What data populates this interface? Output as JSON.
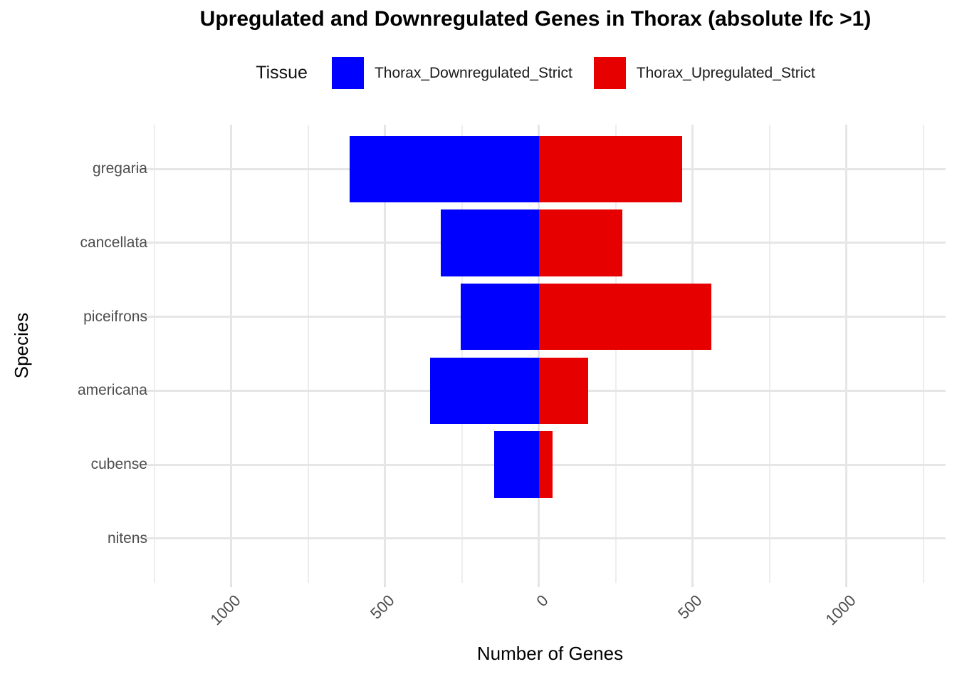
{
  "chart_data": {
    "type": "bar",
    "orientation": "horizontal-diverging",
    "title": "Upregulated and Downregulated Genes in Thorax (absolute lfc >1)",
    "xlabel": "Number of Genes",
    "ylabel": "Species",
    "legend_title": "Tissue",
    "legend_position": "top",
    "grid": true,
    "categories": [
      "gregaria",
      "cancellata",
      "piceifrons",
      "americana",
      "cubense",
      "nitens"
    ],
    "series": [
      {
        "name": "Thorax_Downregulated_Strict",
        "color": "#0000ff",
        "direction": "negative",
        "values": [
          615,
          320,
          255,
          355,
          145,
          0
        ]
      },
      {
        "name": "Thorax_Upregulated_Strict",
        "color": "#e60000",
        "direction": "positive",
        "values": [
          465,
          270,
          560,
          160,
          45,
          0
        ]
      }
    ],
    "x_axis": {
      "range": [
        -1250,
        1322
      ],
      "major_ticks": [
        -1000,
        -500,
        0,
        500,
        1000
      ],
      "tick_labels": [
        "1000",
        "500",
        "0",
        "500",
        "1000"
      ],
      "minor_ticks": [
        -1250,
        -750,
        -250,
        250,
        750,
        1250
      ]
    },
    "colors": {
      "major_grid": "#e6e6e6",
      "minor_grid": "#ededed",
      "axis_text": "#4d4d4d",
      "title": "#000000"
    }
  }
}
